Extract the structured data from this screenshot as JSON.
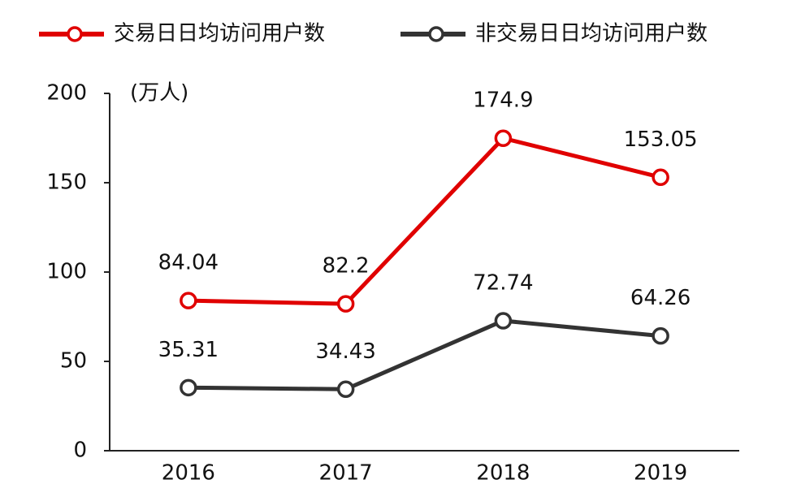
{
  "chart_data": {
    "type": "line",
    "y_label": "(万人)",
    "categories": [
      "2016",
      "2017",
      "2018",
      "2019"
    ],
    "series": [
      {
        "name": "交易日日均访问用户数",
        "color": "#e00000",
        "values": [
          84.04,
          82.2,
          174.9,
          153.05
        ]
      },
      {
        "name": "非交易日日均访问用户数",
        "color": "#333333",
        "values": [
          35.31,
          34.43,
          72.74,
          64.26
        ]
      }
    ],
    "ylim": [
      0,
      200
    ],
    "yticks": [
      0,
      50,
      100,
      150,
      200
    ],
    "legend": "top"
  }
}
